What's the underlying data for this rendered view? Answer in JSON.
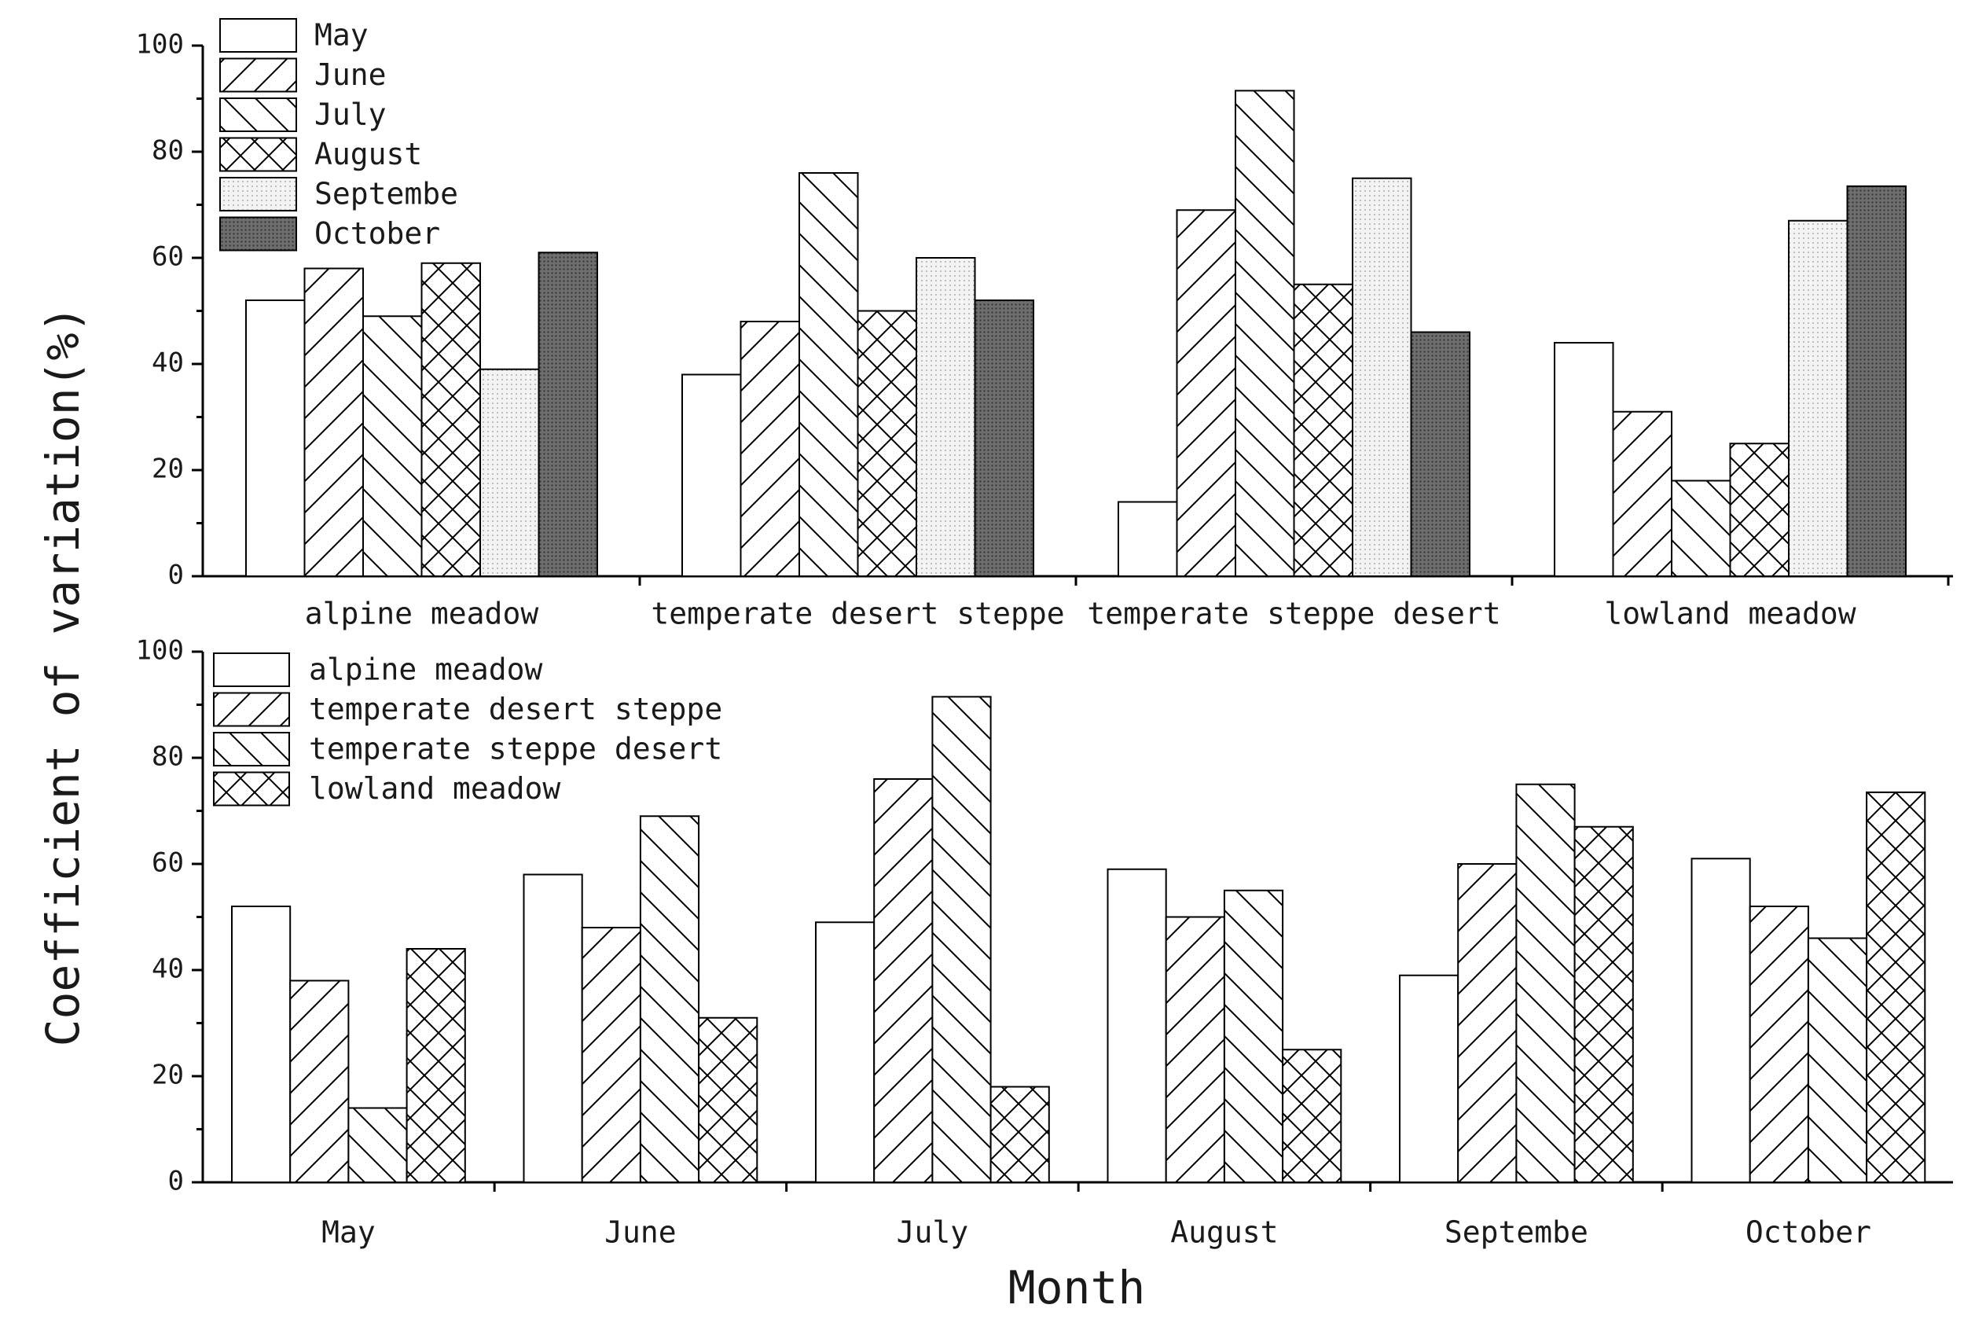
{
  "figure": {
    "ylabel": "Coefficient of variation(%)",
    "xlabel": "Month"
  },
  "colors": {
    "axis": "#000000",
    "background": "#ffffff",
    "dotted_fill": "#d9d9d9",
    "dark_fill": "#555555"
  },
  "chart_data": [
    {
      "type": "bar",
      "title": "",
      "ylabel": "Coefficient of variation(%)",
      "ylim": [
        0,
        100
      ],
      "yticks": [
        "0",
        "20",
        "40",
        "60",
        "80",
        "100"
      ],
      "legend_position": "top-left",
      "categories": [
        "alpine meadow",
        "temperate desert steppe",
        "temperate steppe desert",
        "lowland meadow"
      ],
      "series": [
        {
          "name": "May",
          "pattern": "none",
          "values": [
            52,
            38,
            14,
            44
          ]
        },
        {
          "name": "June",
          "pattern": "diag-up",
          "values": [
            58,
            48,
            69,
            31
          ]
        },
        {
          "name": "July",
          "pattern": "diag-down",
          "values": [
            49,
            76,
            91.5,
            18
          ]
        },
        {
          "name": "August",
          "pattern": "cross",
          "values": [
            59,
            50,
            55,
            25
          ]
        },
        {
          "name": "Septembe",
          "pattern": "dots-light",
          "values": [
            39,
            60,
            75,
            67
          ]
        },
        {
          "name": "October",
          "pattern": "dots-dark",
          "values": [
            61,
            52,
            46,
            73.5
          ]
        }
      ]
    },
    {
      "type": "bar",
      "title": "",
      "xlabel": "Month",
      "ylabel": "Coefficient of variation(%)",
      "ylim": [
        0,
        100
      ],
      "yticks": [
        "0",
        "20",
        "40",
        "60",
        "80",
        "100"
      ],
      "legend_position": "top-left",
      "categories": [
        "May",
        "June",
        "July",
        "August",
        "Septembe",
        "October"
      ],
      "series": [
        {
          "name": "alpine meadow",
          "pattern": "none",
          "values": [
            52,
            58,
            49,
            59,
            39,
            61
          ]
        },
        {
          "name": "temperate desert steppe",
          "pattern": "diag-up",
          "values": [
            38,
            48,
            76,
            50,
            60,
            52
          ]
        },
        {
          "name": "temperate steppe desert",
          "pattern": "diag-down",
          "values": [
            14,
            69,
            91.5,
            55,
            75,
            46
          ]
        },
        {
          "name": "lowland meadow",
          "pattern": "cross",
          "values": [
            44,
            31,
            18,
            25,
            67,
            73.5
          ]
        }
      ]
    }
  ]
}
